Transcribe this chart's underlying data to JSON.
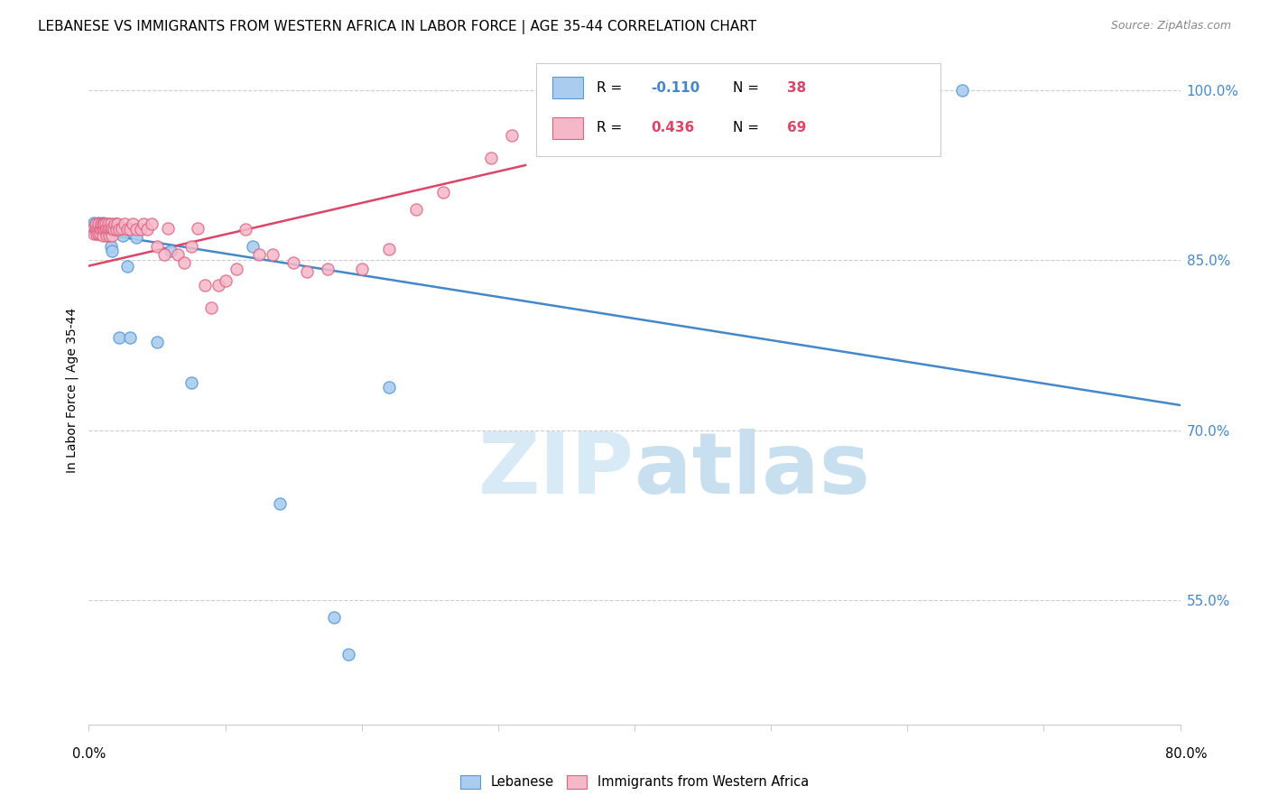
{
  "title": "LEBANESE VS IMMIGRANTS FROM WESTERN AFRICA IN LABOR FORCE | AGE 35-44 CORRELATION CHART",
  "source": "Source: ZipAtlas.com",
  "ylabel": "In Labor Force | Age 35-44",
  "right_yticks": [
    0.55,
    0.7,
    0.85,
    1.0
  ],
  "right_ytick_labels": [
    "55.0%",
    "70.0%",
    "85.0%",
    "100.0%"
  ],
  "xlim": [
    0.0,
    0.8
  ],
  "ylim": [
    0.44,
    1.03
  ],
  "legend_r_blue": "-0.110",
  "legend_n_blue": "38",
  "legend_r_pink": "0.436",
  "legend_n_pink": "69",
  "blue_color": "#aaccee",
  "pink_color": "#f5b8c8",
  "blue_edge_color": "#5599dd",
  "pink_edge_color": "#e06080",
  "blue_line_color": "#4488cc",
  "pink_line_color": "#dd4466",
  "blue_rn_color": "#4488cc",
  "pink_rn_color": "#dd4466",
  "n_color": "#dd4466",
  "watermark_color": "#d8eaf6",
  "grid_color": "#cccccc",
  "background": "#ffffff",
  "blue_scatter_x": [
    0.003,
    0.004,
    0.004,
    0.005,
    0.005,
    0.006,
    0.006,
    0.007,
    0.007,
    0.008,
    0.008,
    0.009,
    0.009,
    0.01,
    0.01,
    0.011,
    0.011,
    0.012,
    0.013,
    0.014,
    0.015,
    0.016,
    0.017,
    0.02,
    0.022,
    0.025,
    0.028,
    0.03,
    0.035,
    0.05,
    0.06,
    0.075,
    0.12,
    0.14,
    0.18,
    0.19,
    0.22,
    0.64
  ],
  "blue_scatter_y": [
    0.88,
    0.877,
    0.883,
    0.878,
    0.882,
    0.877,
    0.882,
    0.877,
    0.883,
    0.877,
    0.882,
    0.878,
    0.882,
    0.878,
    0.883,
    0.878,
    0.882,
    0.877,
    0.878,
    0.882,
    0.878,
    0.862,
    0.858,
    0.882,
    0.782,
    0.872,
    0.845,
    0.782,
    0.87,
    0.778,
    0.858,
    0.742,
    0.862,
    0.635,
    0.535,
    0.502,
    0.738,
    1.0
  ],
  "pink_scatter_x": [
    0.003,
    0.004,
    0.005,
    0.005,
    0.006,
    0.006,
    0.007,
    0.007,
    0.007,
    0.008,
    0.008,
    0.009,
    0.009,
    0.01,
    0.01,
    0.01,
    0.011,
    0.011,
    0.012,
    0.012,
    0.013,
    0.013,
    0.014,
    0.014,
    0.015,
    0.015,
    0.016,
    0.016,
    0.017,
    0.017,
    0.018,
    0.019,
    0.02,
    0.021,
    0.022,
    0.024,
    0.026,
    0.028,
    0.03,
    0.032,
    0.035,
    0.038,
    0.04,
    0.043,
    0.046,
    0.05,
    0.055,
    0.058,
    0.065,
    0.07,
    0.075,
    0.08,
    0.085,
    0.09,
    0.095,
    0.1,
    0.108,
    0.115,
    0.125,
    0.135,
    0.15,
    0.16,
    0.175,
    0.2,
    0.22,
    0.24,
    0.26,
    0.295,
    0.31
  ],
  "pink_scatter_y": [
    0.877,
    0.873,
    0.877,
    0.882,
    0.877,
    0.873,
    0.877,
    0.873,
    0.882,
    0.877,
    0.873,
    0.877,
    0.882,
    0.877,
    0.872,
    0.882,
    0.877,
    0.882,
    0.877,
    0.882,
    0.872,
    0.878,
    0.877,
    0.882,
    0.872,
    0.878,
    0.877,
    0.882,
    0.872,
    0.878,
    0.877,
    0.882,
    0.877,
    0.882,
    0.877,
    0.878,
    0.882,
    0.877,
    0.877,
    0.882,
    0.877,
    0.877,
    0.882,
    0.877,
    0.882,
    0.862,
    0.855,
    0.878,
    0.855,
    0.848,
    0.862,
    0.878,
    0.828,
    0.808,
    0.828,
    0.832,
    0.842,
    0.877,
    0.855,
    0.855,
    0.848,
    0.84,
    0.842,
    0.842,
    0.86,
    0.895,
    0.91,
    0.94,
    0.96
  ]
}
